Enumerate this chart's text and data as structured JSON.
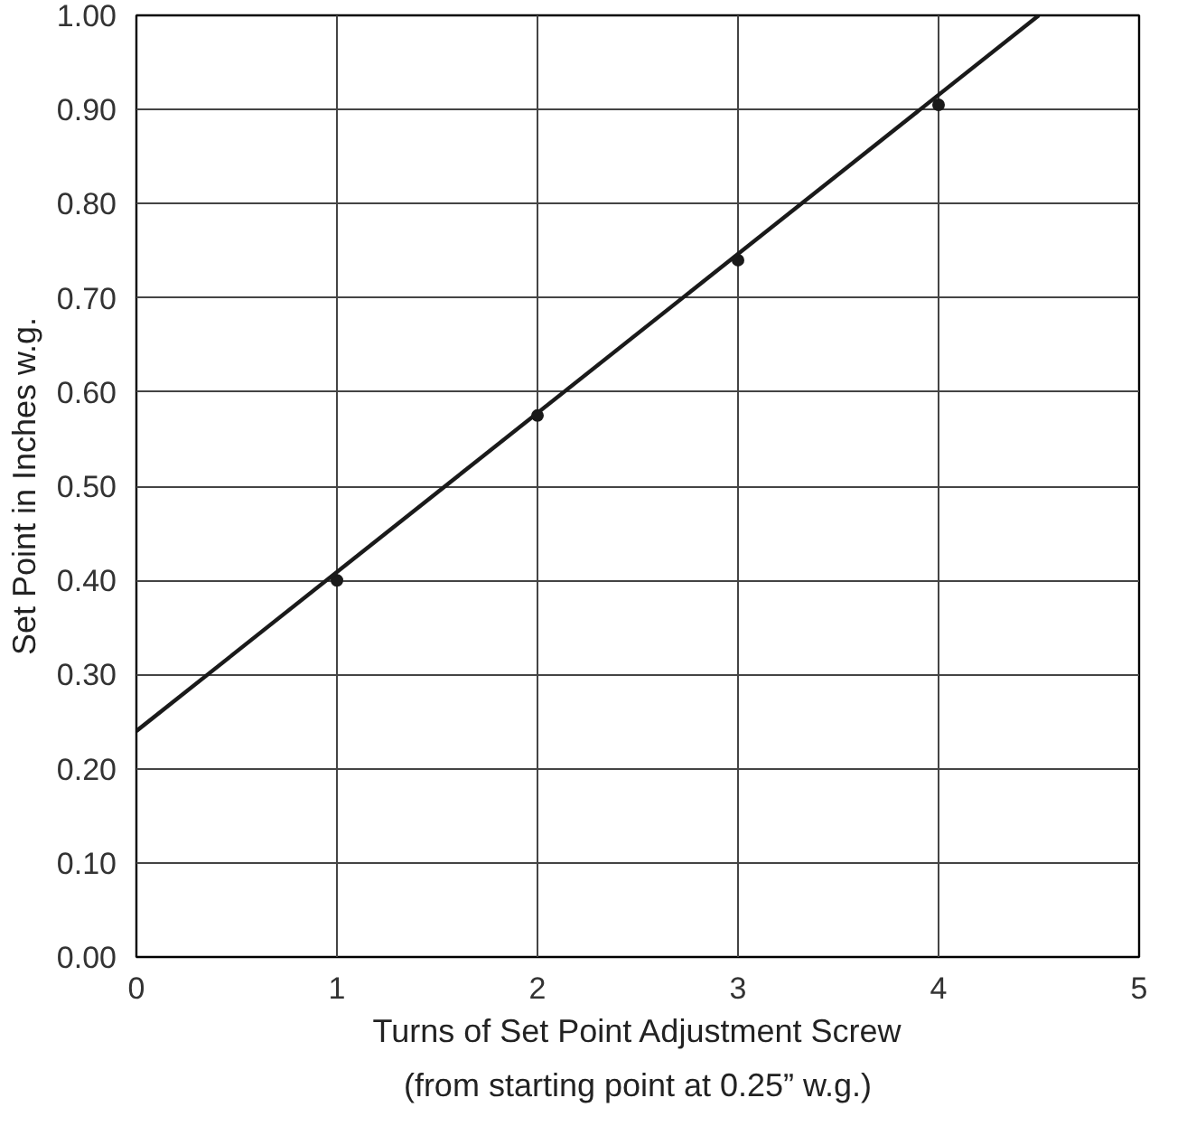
{
  "chart_data": {
    "type": "scatter",
    "xlabel": "Turns of Set Point Adjustment Screw",
    "ylabel": "Set Point in Inches w.g.",
    "annotations": [
      "(from starting point at 0.25” w.g.)"
    ],
    "xlim": [
      0,
      5
    ],
    "ylim": [
      0,
      1.0
    ],
    "xticks": [
      0,
      1,
      2,
      3,
      4,
      5
    ],
    "yticks": [
      {
        "value": 0,
        "label": "0.00"
      },
      {
        "value": 0.1,
        "label": "0.10"
      },
      {
        "value": 0.2,
        "label": "0.20"
      },
      {
        "value": 0.3,
        "label": "0.30"
      },
      {
        "value": 0.4,
        "label": "0.40"
      },
      {
        "value": 0.5,
        "label": "0.50"
      },
      {
        "value": 0.6,
        "label": "0.60"
      },
      {
        "value": 0.7,
        "label": "0.70"
      },
      {
        "value": 0.8,
        "label": "0.80"
      },
      {
        "value": 0.9,
        "label": "0.90"
      },
      {
        "value": 1.0,
        "label": "1.00"
      }
    ],
    "grid": true,
    "marker": "circle",
    "series": [
      {
        "color": "#1a1a1a",
        "x": [
          1,
          2,
          3,
          4
        ],
        "values": [
          0.4,
          0.575,
          0.74,
          0.905
        ]
      },
      {
        "type": "line",
        "marker": "none",
        "color": "#1a1a1a",
        "x": [
          0,
          4.5
        ],
        "values": [
          0.24,
          1.0
        ]
      }
    ]
  }
}
